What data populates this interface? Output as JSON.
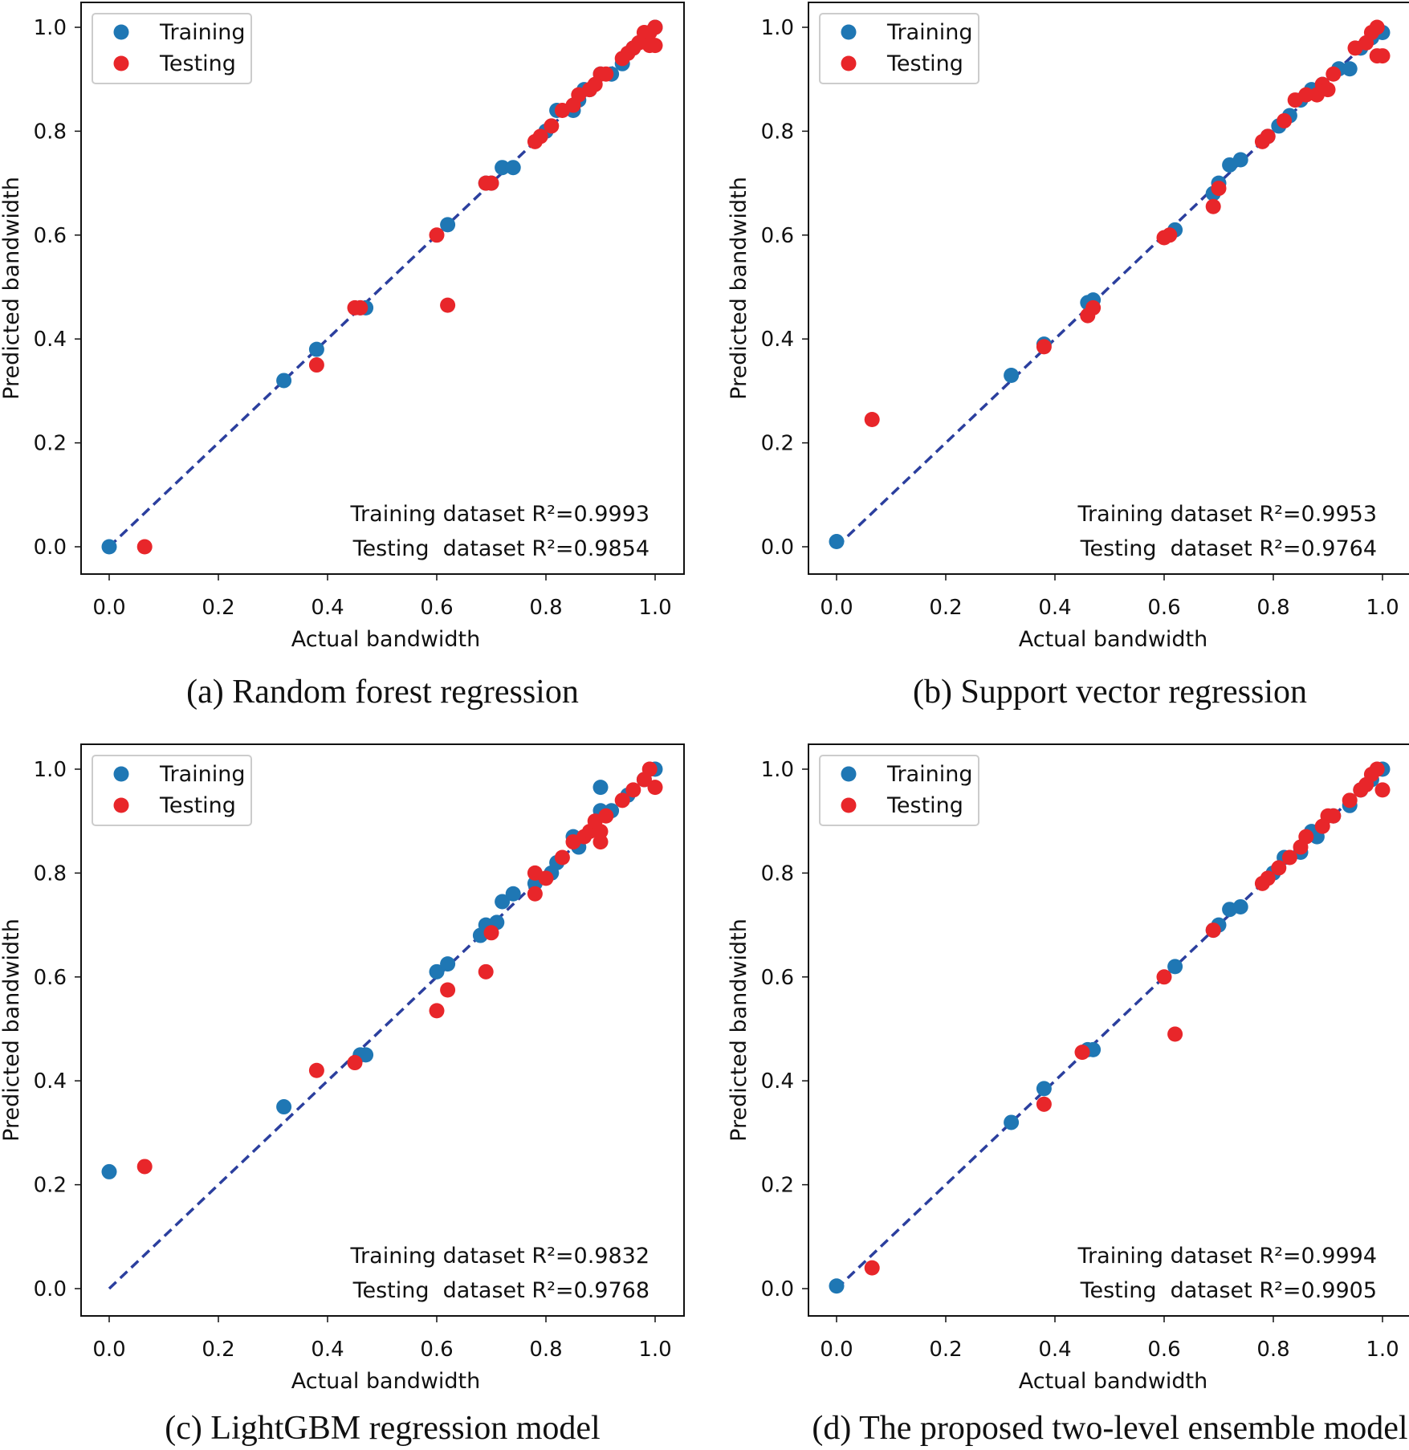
{
  "chart_data": [
    {
      "type": "scatter",
      "caption": "(a) Random forest regression",
      "xlabel": "Actual bandwidth",
      "ylabel": "Predicted bandwidth",
      "xlim": [
        0,
        1
      ],
      "ylim": [
        0,
        1
      ],
      "xticks": [
        "0.0",
        "0.2",
        "0.4",
        "0.6",
        "0.8",
        "1.0"
      ],
      "yticks": [
        "0.0",
        "0.2",
        "0.4",
        "0.6",
        "0.8",
        "1.0"
      ],
      "grid": false,
      "legend_placement": "top-left",
      "reference_line": "y = x (dashed)",
      "annotations": [
        "Training dataset R²=0.9993",
        "Testing  dataset R²=0.9854"
      ],
      "series": [
        {
          "name": "Training",
          "color": "#1f77b4",
          "points": [
            [
              0,
              0
            ],
            [
              0.32,
              0.32
            ],
            [
              0.38,
              0.38
            ],
            [
              0.46,
              0.46
            ],
            [
              0.47,
              0.46
            ],
            [
              0.62,
              0.62
            ],
            [
              0.69,
              0.7
            ],
            [
              0.7,
              0.7
            ],
            [
              0.72,
              0.73
            ],
            [
              0.74,
              0.73
            ],
            [
              0.8,
              0.8
            ],
            [
              0.82,
              0.84
            ],
            [
              0.85,
              0.84
            ],
            [
              0.86,
              0.86
            ],
            [
              0.87,
              0.88
            ],
            [
              0.88,
              0.88
            ],
            [
              0.9,
              0.91
            ],
            [
              0.92,
              0.91
            ],
            [
              0.94,
              0.93
            ],
            [
              0.96,
              0.96
            ],
            [
              0.98,
              0.98
            ],
            [
              1.0,
              1.0
            ]
          ]
        },
        {
          "name": "Testing",
          "color": "#e8262a",
          "points": [
            [
              0.065,
              0
            ],
            [
              0.38,
              0.35
            ],
            [
              0.45,
              0.46
            ],
            [
              0.46,
              0.46
            ],
            [
              0.6,
              0.6
            ],
            [
              0.62,
              0.465
            ],
            [
              0.69,
              0.7
            ],
            [
              0.7,
              0.7
            ],
            [
              0.78,
              0.78
            ],
            [
              0.79,
              0.79
            ],
            [
              0.81,
              0.81
            ],
            [
              0.83,
              0.84
            ],
            [
              0.85,
              0.85
            ],
            [
              0.86,
              0.87
            ],
            [
              0.88,
              0.88
            ],
            [
              0.89,
              0.89
            ],
            [
              0.9,
              0.91
            ],
            [
              0.91,
              0.91
            ],
            [
              0.94,
              0.94
            ],
            [
              0.95,
              0.95
            ],
            [
              0.96,
              0.96
            ],
            [
              0.97,
              0.97
            ],
            [
              0.98,
              0.99
            ],
            [
              0.99,
              0.99
            ],
            [
              1.0,
              1.0
            ],
            [
              0.99,
              0.965
            ],
            [
              1.0,
              0.965
            ]
          ]
        }
      ]
    },
    {
      "type": "scatter",
      "caption": "(b) Support vector regression",
      "xlabel": "Actual bandwidth",
      "ylabel": "Predicted bandwidth",
      "xlim": [
        0,
        1
      ],
      "ylim": [
        0,
        1
      ],
      "xticks": [
        "0.0",
        "0.2",
        "0.4",
        "0.6",
        "0.8",
        "1.0"
      ],
      "yticks": [
        "0.0",
        "0.2",
        "0.4",
        "0.6",
        "0.8",
        "1.0"
      ],
      "grid": false,
      "legend_placement": "top-left",
      "reference_line": "y = x (dashed)",
      "annotations": [
        "Training dataset R²=0.9953",
        "Testing  dataset R²=0.9764"
      ],
      "series": [
        {
          "name": "Training",
          "color": "#1f77b4",
          "points": [
            [
              0,
              0.01
            ],
            [
              0.32,
              0.33
            ],
            [
              0.38,
              0.39
            ],
            [
              0.46,
              0.47
            ],
            [
              0.47,
              0.475
            ],
            [
              0.62,
              0.61
            ],
            [
              0.69,
              0.68
            ],
            [
              0.7,
              0.7
            ],
            [
              0.72,
              0.735
            ],
            [
              0.74,
              0.745
            ],
            [
              0.79,
              0.79
            ],
            [
              0.81,
              0.81
            ],
            [
              0.83,
              0.83
            ],
            [
              0.85,
              0.86
            ],
            [
              0.87,
              0.88
            ],
            [
              0.89,
              0.89
            ],
            [
              0.92,
              0.92
            ],
            [
              0.94,
              0.92
            ],
            [
              0.96,
              0.96
            ],
            [
              0.98,
              0.98
            ],
            [
              1.0,
              0.99
            ]
          ]
        },
        {
          "name": "Testing",
          "color": "#e8262a",
          "points": [
            [
              0.065,
              0.245
            ],
            [
              0.38,
              0.385
            ],
            [
              0.46,
              0.445
            ],
            [
              0.47,
              0.46
            ],
            [
              0.6,
              0.595
            ],
            [
              0.61,
              0.6
            ],
            [
              0.69,
              0.655
            ],
            [
              0.7,
              0.69
            ],
            [
              0.78,
              0.78
            ],
            [
              0.79,
              0.79
            ],
            [
              0.82,
              0.82
            ],
            [
              0.84,
              0.86
            ],
            [
              0.86,
              0.87
            ],
            [
              0.88,
              0.87
            ],
            [
              0.89,
              0.89
            ],
            [
              0.9,
              0.88
            ],
            [
              0.91,
              0.91
            ],
            [
              0.95,
              0.96
            ],
            [
              0.97,
              0.97
            ],
            [
              0.98,
              0.99
            ],
            [
              0.99,
              1.0
            ],
            [
              0.99,
              0.945
            ],
            [
              1.0,
              0.945
            ]
          ]
        }
      ]
    },
    {
      "type": "scatter",
      "caption": "(c) LightGBM regression model",
      "xlabel": "Actual bandwidth",
      "ylabel": "Predicted bandwidth",
      "xlim": [
        0,
        1
      ],
      "ylim": [
        0,
        1
      ],
      "xticks": [
        "0.0",
        "0.2",
        "0.4",
        "0.6",
        "0.8",
        "1.0"
      ],
      "yticks": [
        "0.0",
        "0.2",
        "0.4",
        "0.6",
        "0.8",
        "1.0"
      ],
      "grid": false,
      "legend_placement": "top-left",
      "reference_line": "y = x (dashed)",
      "annotations": [
        "Training dataset R²=0.9832",
        "Testing  dataset R²=0.9768"
      ],
      "series": [
        {
          "name": "Training",
          "color": "#1f77b4",
          "points": [
            [
              0,
              0.225
            ],
            [
              0.32,
              0.35
            ],
            [
              0.46,
              0.45
            ],
            [
              0.47,
              0.45
            ],
            [
              0.6,
              0.61
            ],
            [
              0.62,
              0.625
            ],
            [
              0.68,
              0.68
            ],
            [
              0.69,
              0.7
            ],
            [
              0.71,
              0.705
            ],
            [
              0.72,
              0.745
            ],
            [
              0.74,
              0.76
            ],
            [
              0.78,
              0.78
            ],
            [
              0.81,
              0.8
            ],
            [
              0.82,
              0.82
            ],
            [
              0.85,
              0.87
            ],
            [
              0.86,
              0.85
            ],
            [
              0.9,
              0.965
            ],
            [
              0.9,
              0.92
            ],
            [
              0.92,
              0.92
            ],
            [
              0.95,
              0.95
            ],
            [
              0.98,
              0.98
            ],
            [
              1.0,
              1.0
            ]
          ]
        },
        {
          "name": "Testing",
          "color": "#e8262a",
          "points": [
            [
              0.065,
              0.235
            ],
            [
              0.38,
              0.42
            ],
            [
              0.45,
              0.435
            ],
            [
              0.6,
              0.535
            ],
            [
              0.62,
              0.575
            ],
            [
              0.69,
              0.61
            ],
            [
              0.7,
              0.685
            ],
            [
              0.78,
              0.76
            ],
            [
              0.78,
              0.8
            ],
            [
              0.8,
              0.79
            ],
            [
              0.83,
              0.83
            ],
            [
              0.85,
              0.86
            ],
            [
              0.87,
              0.87
            ],
            [
              0.88,
              0.88
            ],
            [
              0.89,
              0.9
            ],
            [
              0.9,
              0.86
            ],
            [
              0.9,
              0.88
            ],
            [
              0.91,
              0.91
            ],
            [
              0.94,
              0.94
            ],
            [
              0.96,
              0.96
            ],
            [
              0.98,
              0.98
            ],
            [
              0.99,
              1.0
            ],
            [
              1.0,
              0.965
            ]
          ]
        }
      ]
    },
    {
      "type": "scatter",
      "caption": "(d) The proposed two-level ensemble model",
      "xlabel": "Actual bandwidth",
      "ylabel": "Predicted bandwidth",
      "xlim": [
        0,
        1
      ],
      "ylim": [
        0,
        1
      ],
      "xticks": [
        "0.0",
        "0.2",
        "0.4",
        "0.6",
        "0.8",
        "1.0"
      ],
      "yticks": [
        "0.0",
        "0.2",
        "0.4",
        "0.6",
        "0.8",
        "1.0"
      ],
      "grid": false,
      "legend_placement": "top-left",
      "reference_line": "y = x (dashed)",
      "annotations": [
        "Training dataset R²=0.9994",
        "Testing  dataset R²=0.9905"
      ],
      "series": [
        {
          "name": "Training",
          "color": "#1f77b4",
          "points": [
            [
              0,
              0.005
            ],
            [
              0.32,
              0.32
            ],
            [
              0.38,
              0.385
            ],
            [
              0.46,
              0.46
            ],
            [
              0.47,
              0.46
            ],
            [
              0.62,
              0.62
            ],
            [
              0.69,
              0.69
            ],
            [
              0.7,
              0.7
            ],
            [
              0.72,
              0.73
            ],
            [
              0.74,
              0.735
            ],
            [
              0.8,
              0.8
            ],
            [
              0.82,
              0.83
            ],
            [
              0.85,
              0.84
            ],
            [
              0.87,
              0.88
            ],
            [
              0.88,
              0.87
            ],
            [
              0.91,
              0.91
            ],
            [
              0.94,
              0.93
            ],
            [
              0.96,
              0.96
            ],
            [
              0.98,
              0.98
            ],
            [
              1.0,
              1.0
            ]
          ]
        },
        {
          "name": "Testing",
          "color": "#e8262a",
          "points": [
            [
              0.065,
              0.04
            ],
            [
              0.38,
              0.355
            ],
            [
              0.45,
              0.455
            ],
            [
              0.6,
              0.6
            ],
            [
              0.62,
              0.49
            ],
            [
              0.69,
              0.69
            ],
            [
              0.78,
              0.78
            ],
            [
              0.79,
              0.79
            ],
            [
              0.81,
              0.81
            ],
            [
              0.83,
              0.83
            ],
            [
              0.85,
              0.85
            ],
            [
              0.86,
              0.87
            ],
            [
              0.89,
              0.89
            ],
            [
              0.9,
              0.91
            ],
            [
              0.91,
              0.91
            ],
            [
              0.94,
              0.94
            ],
            [
              0.96,
              0.96
            ],
            [
              0.97,
              0.97
            ],
            [
              0.98,
              0.99
            ],
            [
              0.99,
              1.0
            ],
            [
              1.0,
              0.96
            ]
          ]
        }
      ]
    }
  ],
  "line_color": "#2b3f9e"
}
